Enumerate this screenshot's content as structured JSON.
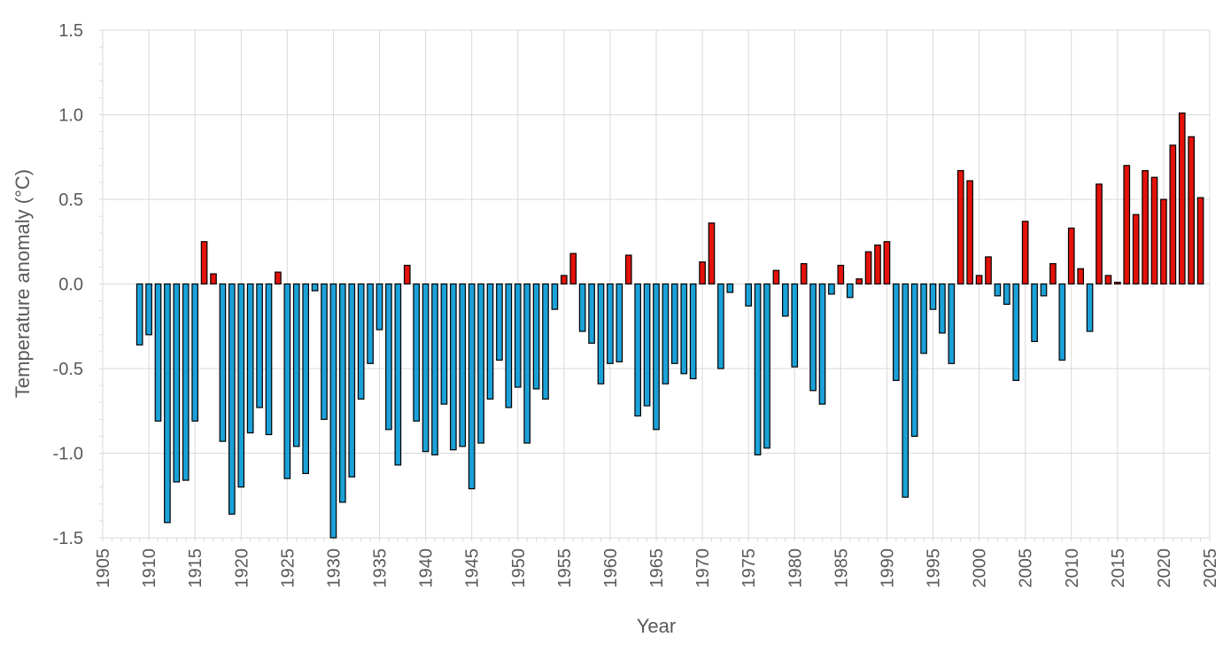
{
  "chart_data": {
    "type": "bar",
    "title": "",
    "xlabel": "Year",
    "ylabel": "Temperature anomaly (°C)",
    "xlim": [
      1905,
      2025
    ],
    "ylim": [
      -1.5,
      1.5
    ],
    "x_ticks": [
      "1905",
      "1910",
      "1915",
      "1920",
      "1925",
      "1930",
      "1935",
      "1940",
      "1945",
      "1950",
      "1955",
      "1960",
      "1965",
      "1970",
      "1975",
      "1980",
      "1985",
      "1990",
      "1995",
      "2000",
      "2005",
      "2010",
      "2015",
      "2020",
      "2025"
    ],
    "y_ticks": [
      "1.5",
      "1.0",
      "0.5",
      "0.0",
      "-0.5",
      "-1.0",
      "-1.5"
    ],
    "grid": true,
    "positive_color": "#e3120b",
    "negative_color": "#1ba1d8",
    "x": [
      1909,
      1910,
      1911,
      1912,
      1913,
      1914,
      1915,
      1916,
      1917,
      1918,
      1919,
      1920,
      1921,
      1922,
      1923,
      1924,
      1925,
      1926,
      1927,
      1928,
      1929,
      1930,
      1931,
      1932,
      1933,
      1934,
      1935,
      1936,
      1937,
      1938,
      1939,
      1940,
      1941,
      1942,
      1943,
      1944,
      1945,
      1946,
      1947,
      1948,
      1949,
      1950,
      1951,
      1952,
      1953,
      1954,
      1955,
      1956,
      1957,
      1958,
      1959,
      1960,
      1961,
      1962,
      1963,
      1964,
      1965,
      1966,
      1967,
      1968,
      1969,
      1970,
      1971,
      1972,
      1973,
      1974,
      1975,
      1976,
      1977,
      1978,
      1979,
      1980,
      1981,
      1982,
      1983,
      1984,
      1985,
      1986,
      1987,
      1988,
      1989,
      1990,
      1991,
      1992,
      1993,
      1994,
      1995,
      1996,
      1997,
      1998,
      1999,
      2000,
      2001,
      2002,
      2003,
      2004,
      2005,
      2006,
      2007,
      2008,
      2009,
      2010,
      2011,
      2012,
      2013,
      2014,
      2015,
      2016,
      2017,
      2018,
      2019,
      2020,
      2021,
      2022,
      2023,
      2024
    ],
    "values": [
      -0.36,
      -0.3,
      -0.81,
      -1.41,
      -1.17,
      -1.16,
      -0.81,
      0.25,
      0.06,
      -0.93,
      -1.36,
      -1.2,
      -0.88,
      -0.73,
      -0.89,
      0.07,
      -1.15,
      -0.96,
      -1.12,
      -0.04,
      -0.8,
      -1.5,
      -1.29,
      -1.14,
      -0.68,
      -0.47,
      -0.27,
      -0.86,
      -1.07,
      0.11,
      -0.81,
      -0.99,
      -1.01,
      -0.71,
      -0.98,
      -0.96,
      -1.21,
      -0.94,
      -0.68,
      -0.45,
      -0.73,
      -0.61,
      -0.94,
      -0.62,
      -0.68,
      -0.15,
      0.05,
      0.18,
      -0.28,
      -0.35,
      -0.59,
      -0.47,
      -0.46,
      0.17,
      -0.78,
      -0.72,
      -0.86,
      -0.59,
      -0.47,
      -0.53,
      -0.56,
      0.13,
      0.36,
      -0.5,
      -0.05,
      0.0,
      -0.13,
      -1.01,
      -0.97,
      0.08,
      -0.19,
      -0.49,
      0.12,
      -0.63,
      -0.71,
      -0.06,
      0.11,
      -0.08,
      0.03,
      0.19,
      0.23,
      0.25,
      -0.57,
      -1.26,
      -0.9,
      -0.41,
      -0.15,
      -0.29,
      -0.47,
      0.67,
      0.61,
      0.05,
      0.16,
      -0.07,
      -0.12,
      -0.57,
      0.37,
      -0.34,
      -0.07,
      0.12,
      -0.45,
      0.33,
      0.09,
      -0.28,
      0.59,
      0.05,
      0.01,
      0.7,
      0.41,
      0.67,
      0.63,
      0.5,
      0.82,
      1.01,
      0.87,
      0.51
    ]
  }
}
